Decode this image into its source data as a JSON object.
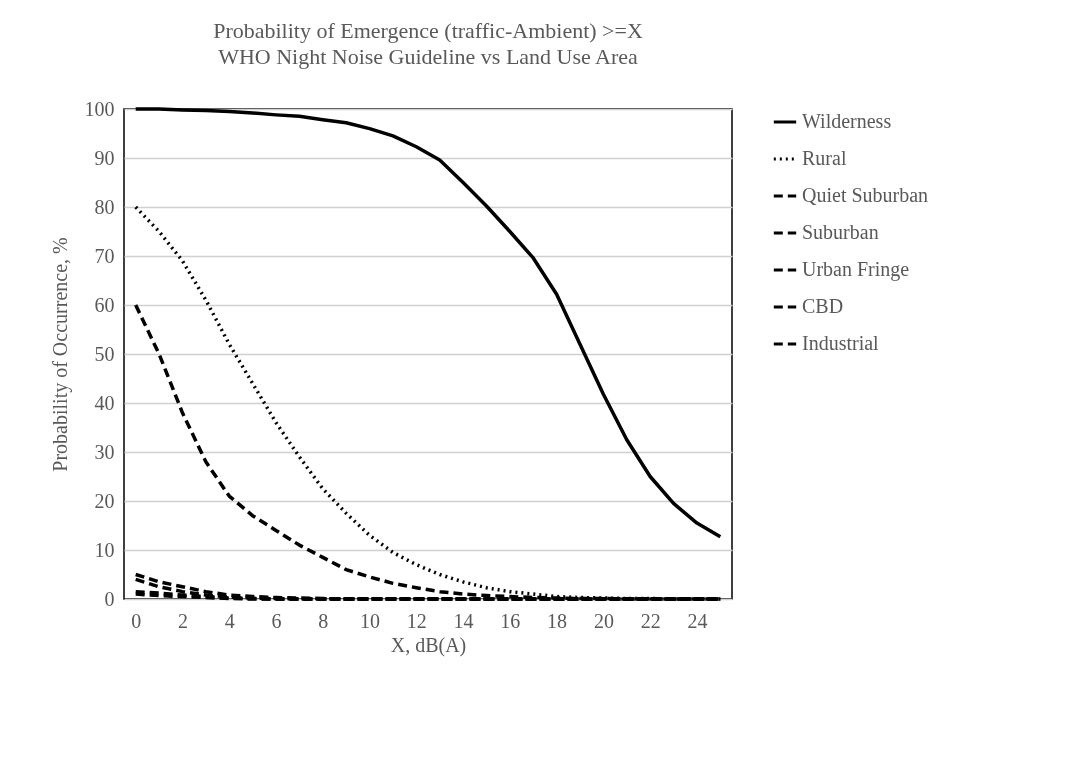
{
  "chart_data": {
    "type": "line",
    "title": "Probability of Emergence (traffic-Ambient) >=X",
    "subtitle": "WHO Night Noise Guideline vs Land Use Area",
    "xlabel": "X, dB(A)",
    "ylabel": "Probability of Occurrence, %",
    "x": [
      0,
      1,
      2,
      3,
      4,
      5,
      6,
      7,
      8,
      9,
      10,
      11,
      12,
      13,
      14,
      15,
      16,
      17,
      18,
      19,
      20,
      21,
      22,
      23,
      24,
      25
    ],
    "series": [
      {
        "name": "Wilderness",
        "color": "#000000",
        "line_style": "solid",
        "values": [
          100,
          100,
          99.8,
          99.7,
          99.5,
          99.2,
          98.8,
          98.5,
          97.8,
          97.2,
          96,
          94.5,
          92.3,
          89.6,
          85,
          80.2,
          75,
          69.6,
          62.2,
          52,
          41.8,
          32.5,
          25,
          19.5,
          15.5,
          12.7
        ]
      },
      {
        "name": "Rural",
        "color": "#000000",
        "line_style": "dotted",
        "values": [
          80,
          75,
          69,
          61,
          52,
          44,
          36,
          29,
          22.5,
          17.5,
          13,
          9.5,
          7,
          5,
          3.5,
          2.3,
          1.5,
          1,
          0.5,
          0.3,
          0.2,
          0.1,
          0.1,
          0,
          0,
          0
        ]
      },
      {
        "name": "Quiet Suburban",
        "color": "#000000",
        "line_style": "dashed",
        "values": [
          60,
          50,
          38,
          28,
          21,
          17,
          14,
          11,
          8.5,
          6,
          4.5,
          3.2,
          2.3,
          1.5,
          1,
          0.7,
          0.5,
          0.3,
          0.2,
          0.1,
          0.1,
          0,
          0,
          0,
          0,
          0
        ]
      },
      {
        "name": "Suburban",
        "color": "#000000",
        "line_style": "dashed",
        "values": [
          4,
          2.5,
          1.5,
          0.8,
          0.4,
          0.2,
          0.1,
          0,
          0,
          0,
          0,
          0,
          0,
          0,
          0,
          0,
          0,
          0,
          0,
          0,
          0,
          0,
          0,
          0,
          0,
          0
        ]
      },
      {
        "name": "Urban Fringe",
        "color": "#000000",
        "line_style": "dashed",
        "values": [
          5,
          3.5,
          2.5,
          1.5,
          0.8,
          0.5,
          0.3,
          0.2,
          0.1,
          0,
          0,
          0,
          0,
          0,
          0,
          0,
          0,
          0,
          0,
          0,
          0,
          0,
          0,
          0,
          0,
          0
        ]
      },
      {
        "name": "CBD",
        "color": "#000000",
        "line_style": "dashed",
        "values": [
          1.5,
          1.2,
          0.8,
          0.5,
          0.2,
          0.1,
          0,
          0,
          0,
          0,
          0,
          0,
          0,
          0,
          0,
          0,
          0,
          0,
          0,
          0,
          0,
          0,
          0,
          0,
          0,
          0
        ]
      },
      {
        "name": "Industrial",
        "color": "#000000",
        "line_style": "dashed",
        "values": [
          1,
          0.7,
          0.5,
          0.3,
          0.1,
          0,
          0,
          0,
          0,
          0,
          0,
          0,
          0,
          0,
          0,
          0,
          0,
          0,
          0,
          0,
          0,
          0,
          0,
          0,
          0,
          0
        ]
      }
    ],
    "xlim": [
      -0.5,
      25.5
    ],
    "xticks": [
      0,
      2,
      4,
      6,
      8,
      10,
      12,
      14,
      16,
      18,
      20,
      22,
      24
    ],
    "ylim": [
      0,
      100
    ],
    "yticks": [
      0,
      10,
      20,
      30,
      40,
      50,
      60,
      70,
      80,
      90,
      100
    ],
    "grid": "y",
    "legend": "right"
  }
}
